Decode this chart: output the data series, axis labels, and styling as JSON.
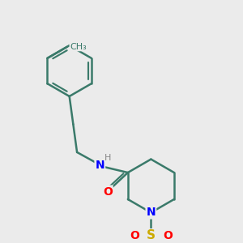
{
  "bg_color": "#ebebeb",
  "bond_color": "#3a7a6a",
  "bond_width": 1.8,
  "atom_colors": {
    "N": "#0000ff",
    "O": "#ff0000",
    "S": "#ccaa00",
    "H": "#888888",
    "C": "#3a7a6a"
  },
  "font_size": 10,
  "fig_size": [
    3.0,
    3.0
  ],
  "dpi": 100
}
